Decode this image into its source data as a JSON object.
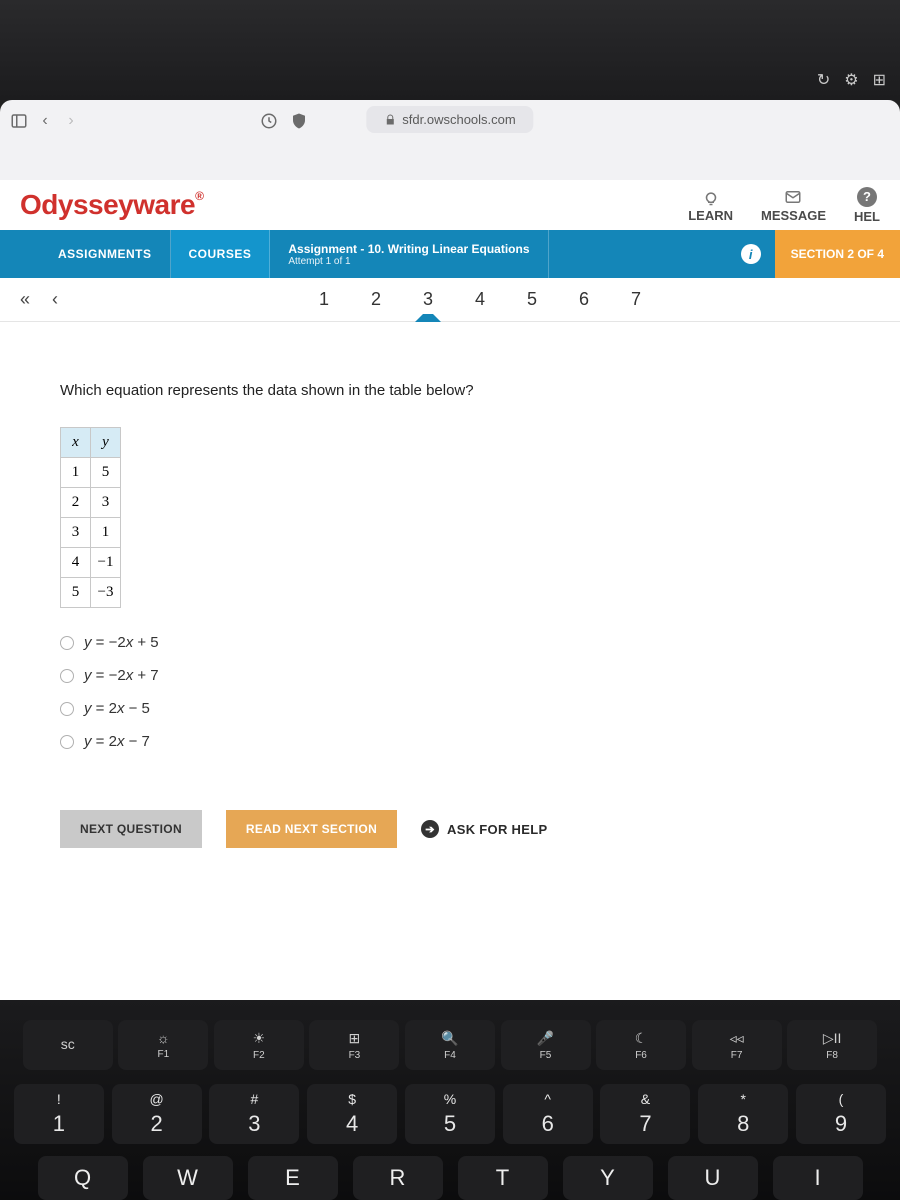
{
  "browser": {
    "url": "sfdr.owschools.com"
  },
  "app": {
    "brand": "Odysseyware",
    "brand_color": "#d0312d",
    "learn_link": "LEARN",
    "message_link": "MESSAGE",
    "help_link": "HEL"
  },
  "nav": {
    "assignments": "ASSIGNMENTS",
    "courses": "COURSES",
    "assignment_title": "Assignment  - 10. Writing Linear Equations",
    "attempt": "Attempt 1 of 1",
    "section_btn": "SECTION 2 OF 4",
    "info_symbol": "i"
  },
  "pager": {
    "pages": [
      "1",
      "2",
      "3",
      "4",
      "5",
      "6",
      "7"
    ],
    "current_index": 2
  },
  "question": {
    "prompt": "Which equation represents the data shown in the table below?",
    "table": {
      "headers": [
        "x",
        "y"
      ],
      "rows": [
        [
          "1",
          "5"
        ],
        [
          "2",
          "3"
        ],
        [
          "3",
          "1"
        ],
        [
          "4",
          "−1"
        ],
        [
          "5",
          "−3"
        ]
      ]
    },
    "options": [
      "y = −2x + 5",
      "y = −2x + 7",
      "y = 2x − 5",
      "y = 2x − 7"
    ]
  },
  "actions": {
    "next_q": "NEXT QUESTION",
    "read_next": "READ NEXT SECTION",
    "ask_help": "ASK FOR HELP"
  },
  "keyboard": {
    "fn": [
      {
        "icon": "sc",
        "label": ""
      },
      {
        "icon": "☼",
        "label": "F1"
      },
      {
        "icon": "☀",
        "label": "F2"
      },
      {
        "icon": "⊞",
        "label": "F3"
      },
      {
        "icon": "🔍",
        "label": "F4"
      },
      {
        "icon": "🎤",
        "label": "F5"
      },
      {
        "icon": "☾",
        "label": "F6"
      },
      {
        "icon": "◃◃",
        "label": "F7"
      },
      {
        "icon": "▷II",
        "label": "F8"
      }
    ],
    "nums": [
      {
        "sym": "!",
        "num": "1"
      },
      {
        "sym": "@",
        "num": "2"
      },
      {
        "sym": "#",
        "num": "3"
      },
      {
        "sym": "$",
        "num": "4"
      },
      {
        "sym": "%",
        "num": "5"
      },
      {
        "sym": "^",
        "num": "6"
      },
      {
        "sym": "&",
        "num": "7"
      },
      {
        "sym": "*",
        "num": "8"
      },
      {
        "sym": "(",
        "num": "9"
      }
    ],
    "letters": [
      "Q",
      "W",
      "E",
      "R",
      "T",
      "Y",
      "U",
      "I"
    ]
  }
}
